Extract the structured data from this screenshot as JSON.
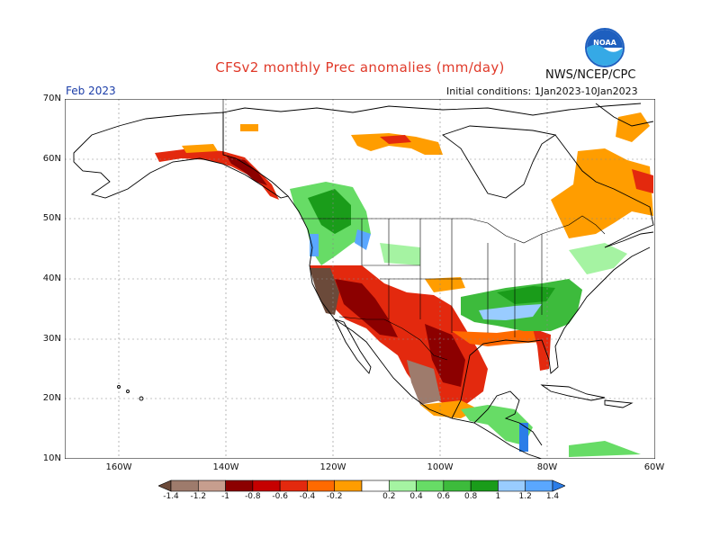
{
  "header": {
    "title": "CFSv2 monthly Prec anomalies (mm/day)",
    "org": "NWS/NCEP/CPC",
    "initial_conditions": "Initial conditions: 1Jan2023-10Jan2023",
    "target_month": "Feb 2023"
  },
  "logo": {
    "icon": "noaa-logo-icon",
    "text": "NOAA"
  },
  "axes": {
    "lat_ticks": [
      "70N",
      "60N",
      "50N",
      "40N",
      "30N",
      "20N",
      "10N"
    ],
    "lon_ticks": [
      "160W",
      "140W",
      "120W",
      "100W",
      "80W",
      "60W"
    ]
  },
  "colorbar": {
    "colors": [
      "#6b4a3a",
      "#9e7b6c",
      "#c79e8e",
      "#8c0000",
      "#c60000",
      "#e3290e",
      "#ff6a00",
      "#ff9d00",
      "#ffffff",
      "#a5f3a2",
      "#67dc66",
      "#3dbb3c",
      "#1a9c1a",
      "#99ccff",
      "#5aa7ff",
      "#2b7de8"
    ],
    "labels": [
      "-1.4",
      "-1.2",
      "-1",
      "-0.8",
      "-0.6",
      "-0.4",
      "-0.2",
      "0.2",
      "0.4",
      "0.6",
      "0.8",
      "1",
      "1.2",
      "1.4"
    ]
  },
  "colors": {
    "title": "#e03a2a",
    "month": "#1b3da8",
    "noaa_blue": "#1e5fbf",
    "noaa_cyan": "#35a9e6"
  }
}
